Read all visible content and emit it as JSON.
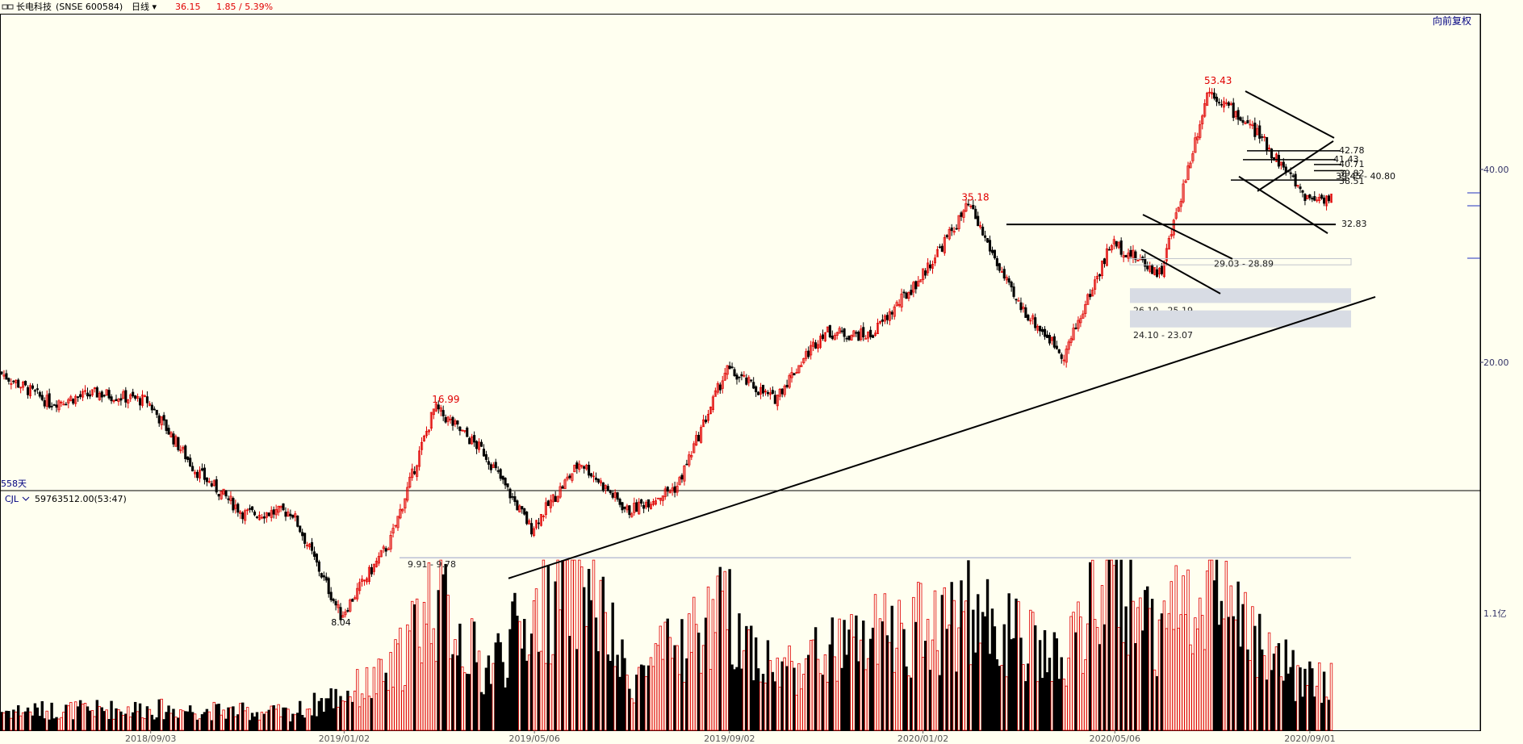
{
  "header": {
    "icon": "link-icon",
    "stock_name": "长电科技",
    "stock_code": "(SNSE 600584)",
    "period": "日线",
    "price": "36.15",
    "change": "1.85 / 5.39%",
    "adjust_mode": "向前复权"
  },
  "colors": {
    "background": "#fffff0",
    "up": "#e00000",
    "down": "#000000",
    "axis_text": "#333366",
    "label_red": "#e00000",
    "header_blue": "#000080",
    "zone_fill": "#d8dce4"
  },
  "chart_data": [
    {
      "type": "candlestick",
      "title": "长电科技(SNSE 600584) 日线",
      "x_ticks": [
        "2018/09/03",
        "2019/01/02",
        "2019/05/06",
        "2019/09/02",
        "2020/01/02",
        "2020/05/06",
        "2020/09/01"
      ],
      "y_ticks": [
        "20.00",
        "40.00"
      ],
      "scale": "log",
      "period_label": "558天",
      "price_anchors": [
        {
          "date": "2018-06",
          "close": 19.2
        },
        {
          "date": "2018-07",
          "close": 17.3
        },
        {
          "date": "2018-08",
          "close": 17.9
        },
        {
          "date": "2018-09",
          "close": 17.4
        },
        {
          "date": "2018-10",
          "close": 13.6
        },
        {
          "date": "2018-11",
          "close": 11.6
        },
        {
          "date": "2018-12",
          "close": 11.7
        },
        {
          "date": "2019-01",
          "close": 8.04
        },
        {
          "date": "2019-02",
          "close": 10.5
        },
        {
          "date": "2019-03",
          "close": 16.99
        },
        {
          "date": "2019-04",
          "close": 14.5
        },
        {
          "date": "2019-05",
          "close": 11.0
        },
        {
          "date": "2019-06",
          "close": 14.0
        },
        {
          "date": "2019-07",
          "close": 11.7
        },
        {
          "date": "2019-08",
          "close": 12.8
        },
        {
          "date": "2019-09",
          "close": 19.5
        },
        {
          "date": "2019-10",
          "close": 17.5
        },
        {
          "date": "2019-11",
          "close": 22.3
        },
        {
          "date": "2019-12",
          "close": 22.0
        },
        {
          "date": "2020-01",
          "close": 27.0
        },
        {
          "date": "2020-02",
          "close": 35.18
        },
        {
          "date": "2020-03",
          "close": 25.0
        },
        {
          "date": "2020-04",
          "close": 20.5
        },
        {
          "date": "2020-05",
          "close": 30.8
        },
        {
          "date": "2020-06",
          "close": 27.5
        },
        {
          "date": "2020-07",
          "close": 53.43
        },
        {
          "date": "2020-08",
          "close": 45.5
        },
        {
          "date": "2020-09",
          "close": 36.15
        }
      ],
      "annotations": {
        "highs": [
          "16.99",
          "35.18",
          "53.43"
        ],
        "lows": [
          "8.04"
        ],
        "levels": [
          "42.78",
          "41.43",
          "39.45 - 40.80",
          "40.71",
          "39.82",
          "38.51",
          "32.83"
        ],
        "zones": [
          "29.03 - 28.89",
          "26.10 - 25.19",
          "24.10 - 23.07",
          "9.91 - 9.78"
        ]
      }
    },
    {
      "type": "bar",
      "title": "CJL",
      "label": "CJL",
      "current_value": "59763512.00(53:47)",
      "y_ticks": [
        "1.1亿"
      ],
      "unit": "亿",
      "volume_anchors": [
        {
          "date": "2018-06",
          "value": 0.18
        },
        {
          "date": "2018-09",
          "value": 0.2
        },
        {
          "date": "2018-12",
          "value": 0.16
        },
        {
          "date": "2019-02",
          "value": 0.5
        },
        {
          "date": "2019-03",
          "value": 1.3
        },
        {
          "date": "2019-04",
          "value": 0.55
        },
        {
          "date": "2019-06",
          "value": 1.55
        },
        {
          "date": "2019-07",
          "value": 0.45
        },
        {
          "date": "2019-09",
          "value": 1.1
        },
        {
          "date": "2019-10",
          "value": 0.55
        },
        {
          "date": "2019-12",
          "value": 0.85
        },
        {
          "date": "2020-02",
          "value": 1.1
        },
        {
          "date": "2020-04",
          "value": 0.6
        },
        {
          "date": "2020-05",
          "value": 1.55
        },
        {
          "date": "2020-06",
          "value": 0.95
        },
        {
          "date": "2020-07",
          "value": 1.45
        },
        {
          "date": "2020-08",
          "value": 0.75
        },
        {
          "date": "2020-09",
          "value": 0.45
        }
      ]
    }
  ]
}
